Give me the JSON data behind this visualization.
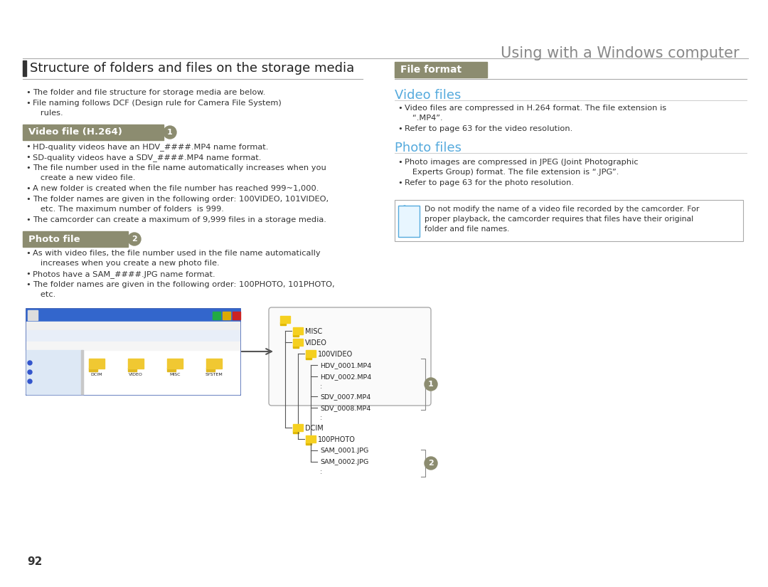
{
  "page_title": "Using with a Windows computer",
  "page_number": "92",
  "bg_color": "#ffffff",
  "title_color": "#888888",
  "section1_title": "Structure of folders and files on the storage media",
  "section1_bar_color": "#333333",
  "section1_bullets": [
    "The folder and file structure for storage media are below.",
    "File naming follows DCF (Design rule for Camera File System)\n   rules."
  ],
  "video_file_header": "Video file (H.264)",
  "video_file_header_bg": "#8c8c70",
  "video_file_header_color": "#ffffff",
  "video_file_bullets": [
    "HD-quality videos have an HDV_####.MP4 name format.",
    "SD-quality videos have a SDV_####.MP4 name format.",
    "The file number used in the file name automatically increases when you\n   create a new video file.",
    "A new folder is created when the file number has reached 999~1,000.",
    "The folder names are given in the following order: 100VIDEO, 101VIDEO,\n   etc. The maximum number of folders  is 999.",
    "The camcorder can create a maximum of 9,999 files in a storage media."
  ],
  "photo_file_header": "Photo file",
  "photo_file_header_bg": "#8c8c70",
  "photo_file_header_color": "#ffffff",
  "photo_file_bullets": [
    "As with video files, the file number used in the file name automatically\n   increases when you create a new photo file.",
    "Photos have a SAM_####.JPG name format.",
    "The folder names are given in the following order: 100PHOTO, 101PHOTO,\n   etc."
  ],
  "right_section_header": "File format",
  "right_section_header_bg": "#8c8c70",
  "right_section_header_color": "#ffffff",
  "video_files_title": "Video files",
  "video_files_color": "#55aadd",
  "video_files_bullets": [
    "Video files are compressed in H.264 format. The file extension is\n   “.MP4”.",
    "Refer to page 63 for the video resolution."
  ],
  "photo_files_title": "Photo files",
  "photo_files_color": "#55aadd",
  "photo_files_bullets": [
    "Photo images are compressed in JPEG (Joint Photographic\n   Experts Group) format. The file extension is “.JPG”.",
    "Refer to page 63 for the photo resolution."
  ],
  "note_text": "Do not modify the name of a video file recorded by the camcorder. For\nproper playback, the camcorder requires that files have their original\nfolder and file names.",
  "note_icon_color": "#55aadd",
  "body_text_color": "#333333",
  "line_color": "#cccccc",
  "header_bg": "#8c8c70"
}
